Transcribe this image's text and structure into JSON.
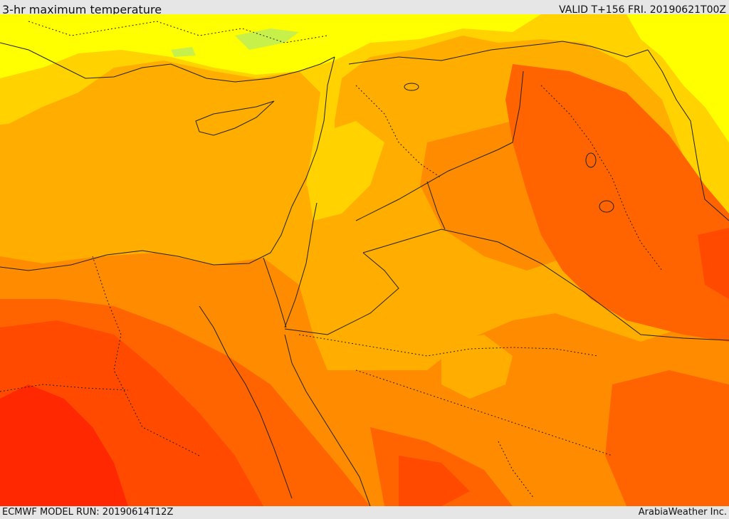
{
  "header": {
    "title": "3-hr maximum temperature",
    "valid": "VALID T+156 FRI. 20190621T00Z"
  },
  "footer": {
    "model_run": "ECMWF MODEL RUN: 20190614T12Z",
    "credit": "ArabiaWeather Inc."
  },
  "map": {
    "colors": {
      "light_green": "#c8f04a",
      "yellow": "#ffff00",
      "yellow_orange": "#ffd200",
      "light_orange": "#ffae00",
      "orange": "#ff8c00",
      "dark_orange": "#ff6400",
      "red_orange": "#ff4a00",
      "red": "#ff2800",
      "border": "#222222"
    }
  }
}
